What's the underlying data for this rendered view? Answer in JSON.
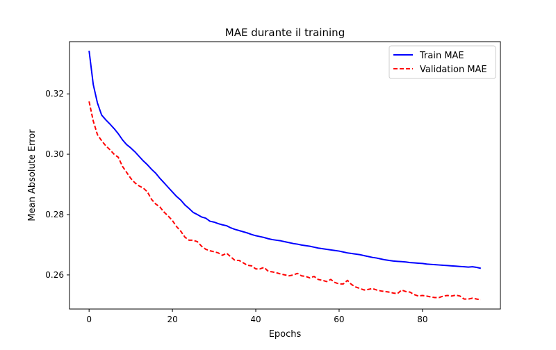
{
  "chart_data": {
    "type": "line",
    "title": "MAE durante il training",
    "xlabel": "Epochs",
    "ylabel": "Mean Absolute Error",
    "xlim": [
      -4.7,
      98.7
    ],
    "ylim": [
      0.2487,
      0.3373
    ],
    "xticks": [
      0,
      20,
      40,
      60,
      80
    ],
    "yticks": [
      0.26,
      0.28,
      0.3,
      0.32
    ],
    "ytick_labels": [
      "0.26",
      "0.28",
      "0.30",
      "0.32"
    ],
    "grid": false,
    "legend_position": "top-right",
    "series": [
      {
        "name": "Train MAE",
        "color": "#0000ff",
        "style": "solid",
        "x": [
          0,
          1,
          2,
          3,
          4,
          5,
          6,
          7,
          8,
          9,
          10,
          11,
          12,
          13,
          14,
          15,
          16,
          17,
          18,
          19,
          20,
          21,
          22,
          23,
          24,
          25,
          26,
          27,
          28,
          29,
          30,
          31,
          32,
          33,
          34,
          35,
          36,
          37,
          38,
          39,
          40,
          41,
          42,
          43,
          44,
          45,
          46,
          47,
          48,
          49,
          50,
          51,
          52,
          53,
          54,
          55,
          56,
          57,
          58,
          59,
          60,
          61,
          62,
          63,
          64,
          65,
          66,
          67,
          68,
          69,
          70,
          71,
          72,
          73,
          74,
          75,
          76,
          77,
          78,
          79,
          80,
          81,
          82,
          83,
          84,
          85,
          86,
          87,
          88,
          89,
          90,
          91,
          92,
          93,
          94
        ],
        "y": [
          0.3343,
          0.3231,
          0.317,
          0.313,
          0.3114,
          0.31,
          0.3085,
          0.3068,
          0.3048,
          0.3032,
          0.3021,
          0.3008,
          0.2993,
          0.2978,
          0.2965,
          0.295,
          0.2937,
          0.292,
          0.2905,
          0.289,
          0.2875,
          0.286,
          0.2848,
          0.2832,
          0.282,
          0.2807,
          0.28,
          0.2792,
          0.2788,
          0.2778,
          0.2775,
          0.277,
          0.2766,
          0.2763,
          0.2756,
          0.2751,
          0.2747,
          0.2743,
          0.2739,
          0.2734,
          0.273,
          0.2727,
          0.2724,
          0.272,
          0.2717,
          0.2715,
          0.2713,
          0.271,
          0.2707,
          0.2704,
          0.2702,
          0.2699,
          0.2697,
          0.2695,
          0.2692,
          0.2689,
          0.2687,
          0.2685,
          0.2683,
          0.2681,
          0.2679,
          0.2676,
          0.2673,
          0.2671,
          0.2669,
          0.2667,
          0.2664,
          0.2661,
          0.2658,
          0.2656,
          0.2653,
          0.265,
          0.2648,
          0.2646,
          0.2645,
          0.2644,
          0.2643,
          0.2641,
          0.264,
          0.2639,
          0.2638,
          0.2636,
          0.2635,
          0.2634,
          0.2633,
          0.2632,
          0.2631,
          0.263,
          0.2629,
          0.2628,
          0.2627,
          0.2626,
          0.2627,
          0.2625,
          0.2622
        ]
      },
      {
        "name": "Validation MAE",
        "color": "#ff0000",
        "style": "dashed",
        "x": [
          0,
          1,
          2,
          3,
          4,
          5,
          6,
          7,
          8,
          9,
          10,
          11,
          12,
          13,
          14,
          15,
          16,
          17,
          18,
          19,
          20,
          21,
          22,
          23,
          24,
          25,
          26,
          27,
          28,
          29,
          30,
          31,
          32,
          33,
          34,
          35,
          36,
          37,
          38,
          39,
          40,
          41,
          42,
          43,
          44,
          45,
          46,
          47,
          48,
          49,
          50,
          51,
          52,
          53,
          54,
          55,
          56,
          57,
          58,
          59,
          60,
          61,
          62,
          63,
          64,
          65,
          66,
          67,
          68,
          69,
          70,
          71,
          72,
          73,
          74,
          75,
          76,
          77,
          78,
          79,
          80,
          81,
          82,
          83,
          84,
          85,
          86,
          87,
          88,
          89,
          90,
          91,
          92,
          93,
          94
        ],
        "y": [
          0.3175,
          0.311,
          0.3065,
          0.3045,
          0.3028,
          0.3015,
          0.3,
          0.299,
          0.296,
          0.294,
          0.292,
          0.2905,
          0.2895,
          0.2888,
          0.2875,
          0.285,
          0.2835,
          0.2825,
          0.2808,
          0.2795,
          0.278,
          0.276,
          0.2745,
          0.2725,
          0.2715,
          0.2715,
          0.271,
          0.2695,
          0.2685,
          0.268,
          0.2677,
          0.2673,
          0.2665,
          0.2672,
          0.266,
          0.2648,
          0.2648,
          0.264,
          0.2632,
          0.263,
          0.262,
          0.262,
          0.2625,
          0.2612,
          0.261,
          0.2607,
          0.2603,
          0.26,
          0.2597,
          0.26,
          0.2605,
          0.2597,
          0.2595,
          0.259,
          0.2595,
          0.2585,
          0.2582,
          0.2578,
          0.2585,
          0.2575,
          0.257,
          0.257,
          0.2582,
          0.2568,
          0.256,
          0.2555,
          0.255,
          0.2552,
          0.2555,
          0.255,
          0.2547,
          0.2545,
          0.2543,
          0.254,
          0.2538,
          0.255,
          0.2545,
          0.2543,
          0.2535,
          0.253,
          0.2532,
          0.253,
          0.2527,
          0.2525,
          0.2525,
          0.253,
          0.2532,
          0.253,
          0.2533,
          0.253,
          0.252,
          0.252,
          0.2523,
          0.252,
          0.2518
        ]
      }
    ]
  }
}
